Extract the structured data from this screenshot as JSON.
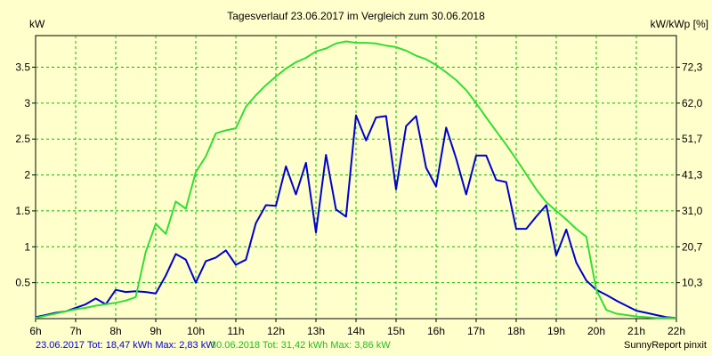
{
  "chart_data": {
    "type": "line",
    "title": "Tagesverlauf 23.06.2017 im Vergleich zum 30.06.2018",
    "ylabel_left": "kW",
    "ylabel_right": "kW/kWp [%]",
    "x_ticks": [
      "6h",
      "7h",
      "8h",
      "9h",
      "10h",
      "11h",
      "12h",
      "13h",
      "14h",
      "15h",
      "16h",
      "17h",
      "18h",
      "19h",
      "20h",
      "21h",
      "22h"
    ],
    "xlim": [
      6,
      22
    ],
    "ylim": [
      0,
      3.94
    ],
    "y_ticks_left": [
      "0.5",
      "1",
      "1.5",
      "2",
      "2.5",
      "3",
      "3.5"
    ],
    "y_ticks_right": [
      "10,3",
      "20,7",
      "31,0",
      "41,3",
      "51,7",
      "62,0",
      "72,3"
    ],
    "grid": true,
    "series": [
      {
        "color": "#0000cc",
        "x": [
          6.0,
          6.25,
          6.5,
          6.75,
          7.0,
          7.25,
          7.5,
          7.75,
          8.0,
          8.25,
          8.5,
          8.75,
          9.0,
          9.25,
          9.5,
          9.75,
          10.0,
          10.25,
          10.5,
          10.75,
          11.0,
          11.25,
          11.5,
          11.75,
          12.0,
          12.25,
          12.5,
          12.75,
          13.0,
          13.25,
          13.5,
          13.75,
          14.0,
          14.25,
          14.5,
          14.75,
          15.0,
          15.25,
          15.5,
          15.75,
          16.0,
          16.25,
          16.5,
          16.75,
          17.0,
          17.25,
          17.5,
          17.75,
          18.0,
          18.25,
          18.5,
          18.75,
          19.0,
          19.25,
          19.5,
          19.75,
          20.0,
          20.25,
          20.5,
          20.75,
          21.0,
          21.25,
          21.5,
          21.75,
          22.0
        ],
        "y": [
          0.02,
          0.05,
          0.08,
          0.1,
          0.15,
          0.2,
          0.28,
          0.2,
          0.4,
          0.37,
          0.38,
          0.37,
          0.35,
          0.6,
          0.9,
          0.82,
          0.5,
          0.8,
          0.85,
          0.95,
          0.75,
          0.82,
          1.33,
          1.58,
          1.57,
          2.12,
          1.73,
          2.17,
          1.2,
          2.28,
          1.52,
          1.42,
          2.83,
          2.48,
          2.8,
          2.82,
          1.8,
          2.68,
          2.82,
          2.1,
          1.84,
          2.66,
          2.23,
          1.73,
          2.27,
          2.27,
          1.93,
          1.9,
          1.25,
          1.25,
          1.42,
          1.58,
          0.88,
          1.24,
          0.78,
          0.53,
          0.4,
          0.33,
          0.25,
          0.18,
          0.11,
          0.08,
          0.05,
          0.02,
          0.01
        ]
      },
      {
        "color": "#33dd33",
        "x": [
          6.0,
          6.25,
          6.5,
          6.75,
          7.0,
          7.25,
          7.5,
          7.75,
          8.0,
          8.25,
          8.5,
          8.75,
          9.0,
          9.25,
          9.5,
          9.75,
          10.0,
          10.25,
          10.5,
          10.75,
          11.0,
          11.25,
          11.5,
          11.75,
          12.0,
          12.25,
          12.5,
          12.75,
          13.0,
          13.25,
          13.5,
          13.75,
          14.0,
          14.25,
          14.5,
          14.75,
          15.0,
          15.25,
          15.5,
          15.75,
          16.0,
          16.25,
          16.5,
          16.75,
          17.0,
          17.25,
          17.5,
          17.75,
          18.0,
          18.25,
          18.5,
          18.75,
          19.0,
          19.25,
          19.5,
          19.75,
          20.0,
          20.25,
          20.5,
          20.75,
          21.0,
          21.25,
          21.5,
          21.75,
          22.0
        ],
        "y": [
          0.01,
          0.04,
          0.07,
          0.1,
          0.13,
          0.15,
          0.18,
          0.2,
          0.22,
          0.25,
          0.3,
          0.93,
          1.32,
          1.18,
          1.63,
          1.53,
          2.04,
          2.26,
          2.58,
          2.62,
          2.65,
          2.95,
          3.11,
          3.25,
          3.37,
          3.48,
          3.57,
          3.63,
          3.72,
          3.76,
          3.83,
          3.86,
          3.84,
          3.84,
          3.83,
          3.8,
          3.78,
          3.73,
          3.66,
          3.61,
          3.53,
          3.43,
          3.32,
          3.18,
          3.0,
          2.8,
          2.61,
          2.42,
          2.22,
          2.01,
          1.8,
          1.62,
          1.5,
          1.38,
          1.25,
          1.14,
          0.4,
          0.12,
          0.07,
          0.05,
          0.03,
          0.02,
          0.01,
          0.01,
          0.01
        ]
      }
    ]
  },
  "footer": {
    "series1_summary": "23.06.2017 Tot: 18,47 kWh Max: 2,83 kW",
    "series2_summary": "30.06.2018 Tot: 31,42 kWh Max: 3,86 kW",
    "credit": "SunnyReport pinxit"
  }
}
